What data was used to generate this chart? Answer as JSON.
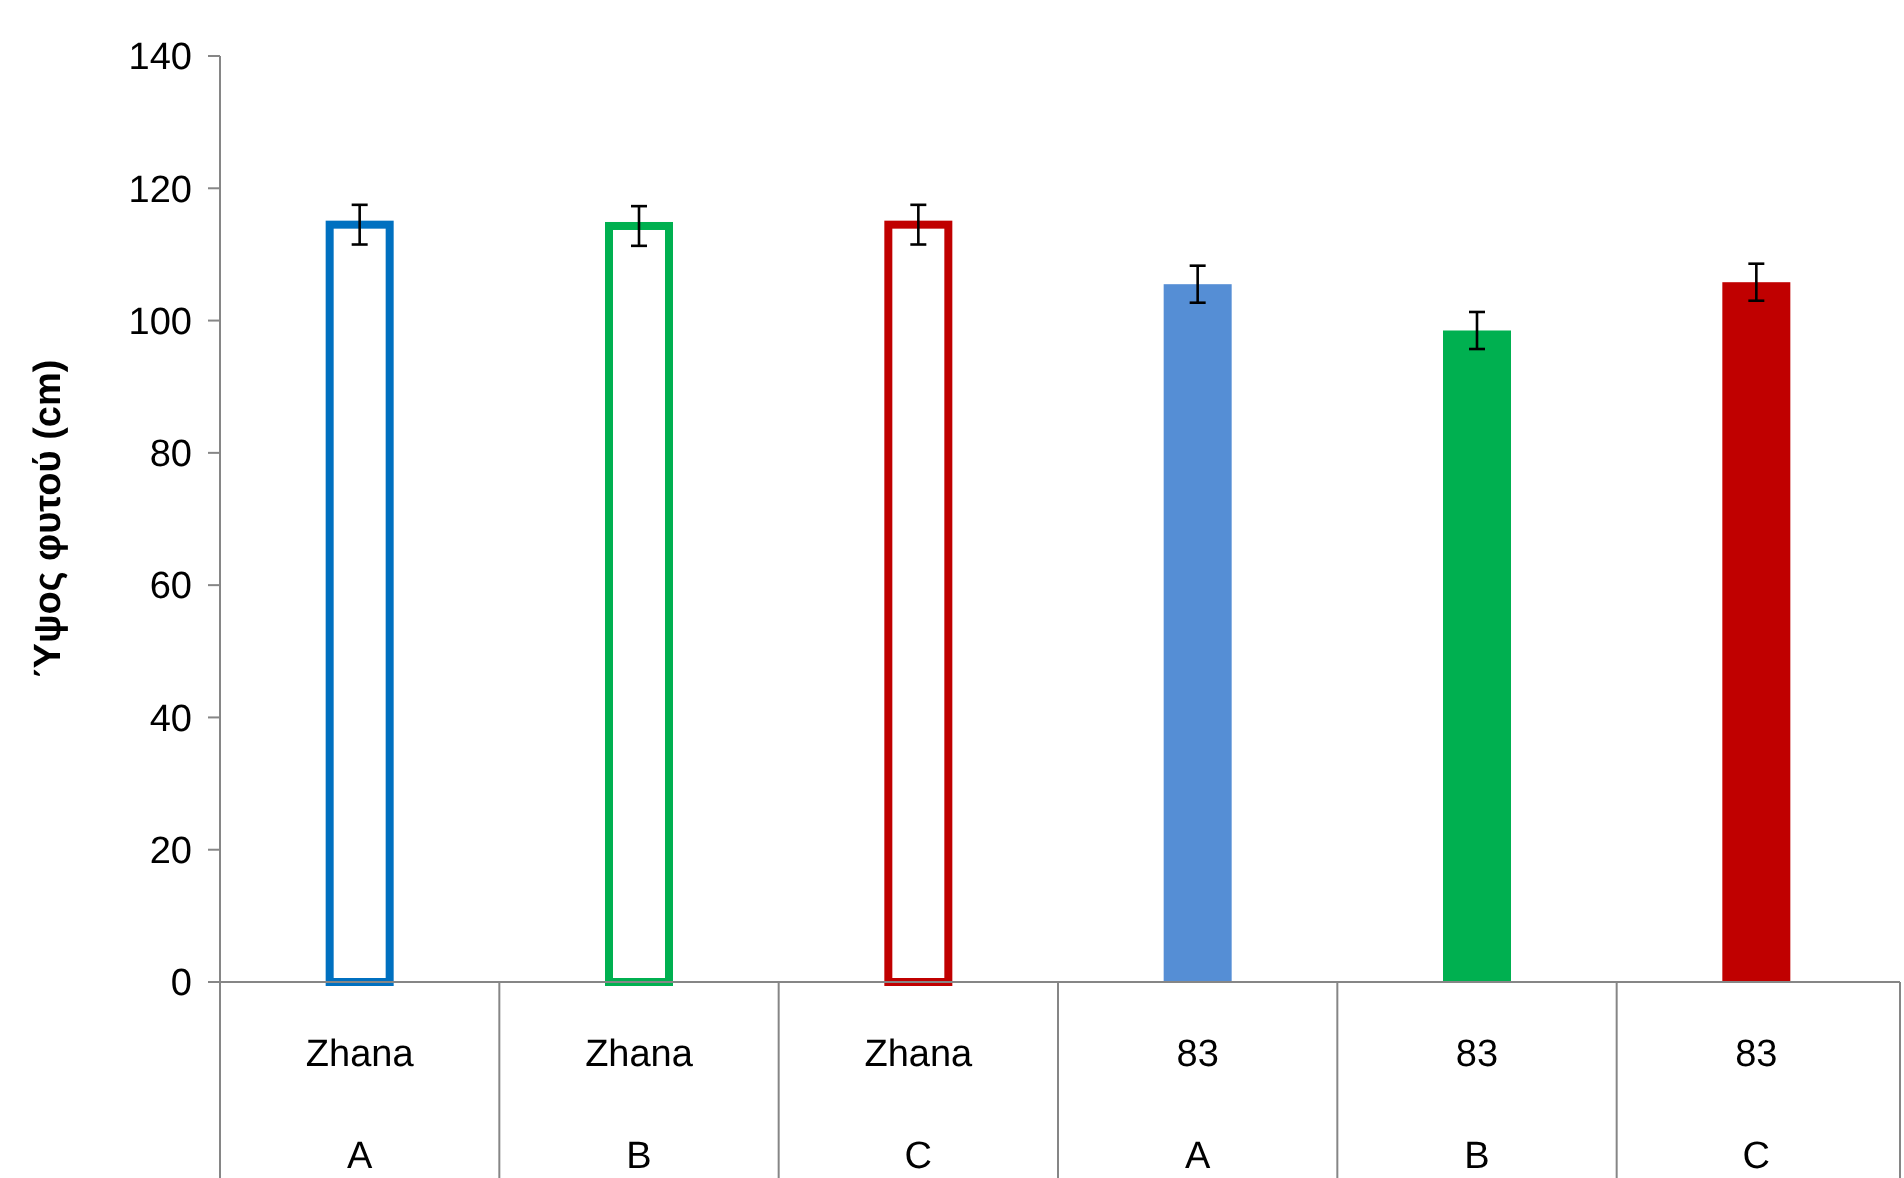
{
  "chart_data": {
    "type": "bar",
    "ylabel": "Ύψος φυτού (cm)",
    "categories": [
      "Zhana\nA",
      "Zhana\nB",
      "Zhana\nC",
      "83\nA",
      "83\nB",
      "83\nC"
    ],
    "series": [
      {
        "line_style": "solid",
        "colors": [
          "#0070c0",
          "#00b050",
          "#c00000",
          null,
          null,
          null
        ],
        "values": [
          114.5,
          114.3,
          114.5,
          null,
          null,
          null
        ],
        "errors": [
          3,
          3,
          3,
          null,
          null,
          null
        ]
      },
      {
        "colors": [
          null,
          null,
          null,
          "#558ed5",
          "#00b050",
          "#c00000"
        ],
        "values": [
          null,
          null,
          null,
          105.5,
          98.5,
          105.8
        ],
        "errors": [
          null,
          null,
          null,
          2.8,
          2.8,
          2.8
        ]
      }
    ],
    "ylim": [
      0,
      140
    ],
    "yticks": [
      0,
      20,
      40,
      60,
      80,
      100,
      120,
      140
    ],
    "grid": false
  }
}
